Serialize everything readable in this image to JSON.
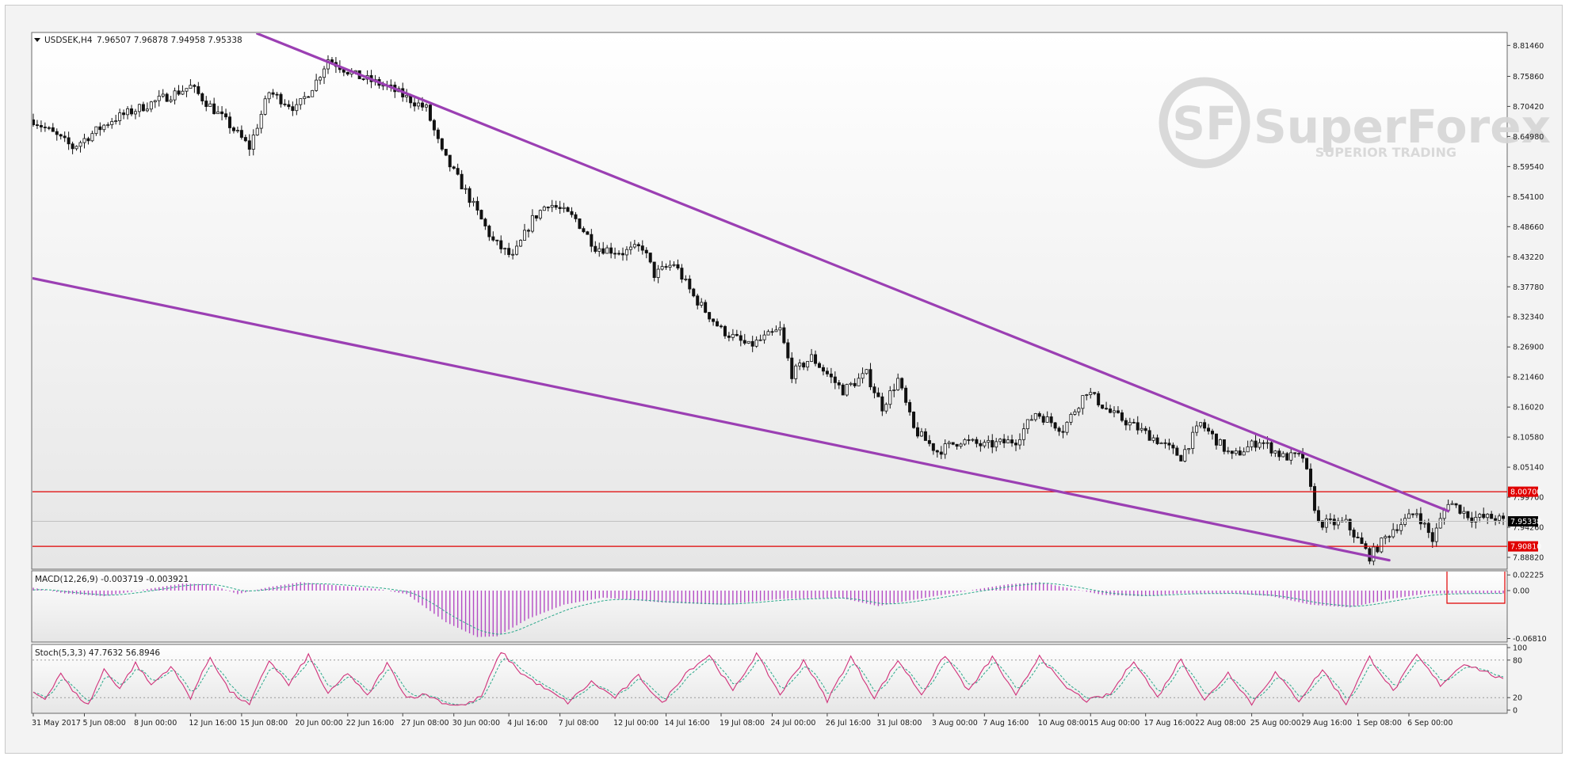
{
  "chart_data": [
    {
      "type": "candlestick",
      "symbol_label": "USDSEK,H4",
      "ohlc_label": "7.96507 7.96878 7.94958 7.95338",
      "price_axis_ticks": [
        "8.81460",
        "8.75860",
        "8.70420",
        "8.64980",
        "8.59540",
        "8.54100",
        "8.48660",
        "8.43220",
        "8.37780",
        "8.32340",
        "8.26900",
        "8.21460",
        "8.16020",
        "8.10580",
        "8.05140",
        "7.99700",
        "7.94260",
        "7.88820"
      ],
      "ylim": [
        7.8682,
        8.8366
      ],
      "levels": [
        {
          "label": "8.00700",
          "value": 8.007,
          "color": "#e00000"
        },
        {
          "label": "7.90810",
          "value": 7.9081,
          "color": "#e00000"
        }
      ],
      "current_price": {
        "label": "7.95338",
        "value": 7.95338
      },
      "trendlines": [
        {
          "name": "upper",
          "color": "#9b3fb3",
          "from": {
            "bar": 57,
            "price": 8.836
          },
          "to": {
            "bar": 360,
            "price": 7.972
          }
        },
        {
          "name": "lower",
          "color": "#9b3fb3",
          "from": {
            "bar": 0,
            "price": 8.393
          },
          "to": {
            "bar": 345,
            "price": 7.883
          }
        }
      ],
      "approx_close_path": [
        {
          "bar": 0,
          "price": 8.68
        },
        {
          "bar": 10,
          "price": 8.63
        },
        {
          "bar": 20,
          "price": 8.68
        },
        {
          "bar": 30,
          "price": 8.71
        },
        {
          "bar": 40,
          "price": 8.74
        },
        {
          "bar": 50,
          "price": 8.67
        },
        {
          "bar": 55,
          "price": 8.63
        },
        {
          "bar": 60,
          "price": 8.73
        },
        {
          "bar": 67,
          "price": 8.7
        },
        {
          "bar": 72,
          "price": 8.75
        },
        {
          "bar": 75,
          "price": 8.79
        },
        {
          "bar": 82,
          "price": 8.76
        },
        {
          "bar": 90,
          "price": 8.74
        },
        {
          "bar": 100,
          "price": 8.7
        },
        {
          "bar": 104,
          "price": 8.62
        },
        {
          "bar": 110,
          "price": 8.55
        },
        {
          "bar": 117,
          "price": 8.46
        },
        {
          "bar": 122,
          "price": 8.43
        },
        {
          "bar": 127,
          "price": 8.5
        },
        {
          "bar": 131,
          "price": 8.53
        },
        {
          "bar": 138,
          "price": 8.5
        },
        {
          "bar": 143,
          "price": 8.45
        },
        {
          "bar": 150,
          "price": 8.44
        },
        {
          "bar": 155,
          "price": 8.45
        },
        {
          "bar": 158,
          "price": 8.4
        },
        {
          "bar": 163,
          "price": 8.42
        },
        {
          "bar": 168,
          "price": 8.36
        },
        {
          "bar": 175,
          "price": 8.3
        },
        {
          "bar": 182,
          "price": 8.27
        },
        {
          "bar": 190,
          "price": 8.3
        },
        {
          "bar": 193,
          "price": 8.22
        },
        {
          "bar": 198,
          "price": 8.25
        },
        {
          "bar": 206,
          "price": 8.19
        },
        {
          "bar": 212,
          "price": 8.22
        },
        {
          "bar": 216,
          "price": 8.16
        },
        {
          "bar": 220,
          "price": 8.21
        },
        {
          "bar": 224,
          "price": 8.12
        },
        {
          "bar": 230,
          "price": 8.08
        },
        {
          "bar": 236,
          "price": 8.1
        },
        {
          "bar": 242,
          "price": 8.09
        },
        {
          "bar": 250,
          "price": 8.1
        },
        {
          "bar": 255,
          "price": 8.15
        },
        {
          "bar": 262,
          "price": 8.12
        },
        {
          "bar": 268,
          "price": 8.19
        },
        {
          "bar": 274,
          "price": 8.15
        },
        {
          "bar": 279,
          "price": 8.13
        },
        {
          "bar": 286,
          "price": 8.1
        },
        {
          "bar": 292,
          "price": 8.07
        },
        {
          "bar": 297,
          "price": 8.13
        },
        {
          "bar": 305,
          "price": 8.07
        },
        {
          "bar": 312,
          "price": 8.1
        },
        {
          "bar": 318,
          "price": 8.07
        },
        {
          "bar": 323,
          "price": 8.07
        },
        {
          "bar": 327,
          "price": 7.95
        },
        {
          "bar": 334,
          "price": 7.95
        },
        {
          "bar": 340,
          "price": 7.89
        },
        {
          "bar": 346,
          "price": 7.94
        },
        {
          "bar": 352,
          "price": 7.97
        },
        {
          "bar": 356,
          "price": 7.92
        },
        {
          "bar": 360,
          "price": 7.99
        },
        {
          "bar": 366,
          "price": 7.96
        },
        {
          "bar": 372,
          "price": 7.96
        },
        {
          "bar": 374,
          "price": 7.953
        }
      ],
      "time_axis_labels": [
        {
          "bar": 0,
          "label": "31 May 2017"
        },
        {
          "bar": 13,
          "label": "5 Jun 08:00"
        },
        {
          "bar": 26,
          "label": "8 Jun 00:00"
        },
        {
          "bar": 40,
          "label": "12 Jun 16:00"
        },
        {
          "bar": 53,
          "label": "15 Jun 08:00"
        },
        {
          "bar": 67,
          "label": "20 Jun 00:00"
        },
        {
          "bar": 80,
          "label": "22 Jun 16:00"
        },
        {
          "bar": 94,
          "label": "27 Jun 08:00"
        },
        {
          "bar": 107,
          "label": "30 Jun 00:00"
        },
        {
          "bar": 121,
          "label": "4 Jul 16:00"
        },
        {
          "bar": 134,
          "label": "7 Jul 08:00"
        },
        {
          "bar": 148,
          "label": "12 Jul 00:00"
        },
        {
          "bar": 161,
          "label": "14 Jul 16:00"
        },
        {
          "bar": 175,
          "label": "19 Jul 08:00"
        },
        {
          "bar": 188,
          "label": "24 Jul 00:00"
        },
        {
          "bar": 202,
          "label": "26 Jul 16:00"
        },
        {
          "bar": 215,
          "label": "31 Jul 08:00"
        },
        {
          "bar": 229,
          "label": "3 Aug 00:00"
        },
        {
          "bar": 242,
          "label": "7 Aug 16:00"
        },
        {
          "bar": 256,
          "label": "10 Aug 08:00"
        },
        {
          "bar": 269,
          "label": "15 Aug 00:00"
        },
        {
          "bar": 283,
          "label": "17 Aug 16:00"
        },
        {
          "bar": 296,
          "label": "22 Aug 08:00"
        },
        {
          "bar": 310,
          "label": "25 Aug 00:00"
        },
        {
          "bar": 323,
          "label": "29 Aug 16:00"
        },
        {
          "bar": 337,
          "label": "1 Sep 08:00"
        },
        {
          "bar": 350,
          "label": "6 Sep 00:00"
        }
      ]
    },
    {
      "type": "histogram",
      "label": "MACD(12,26,9) -0.003719 -0.003921",
      "axis_ticks": [
        {
          "label": "0.02225",
          "value": 0.02225
        },
        {
          "label": "0.00",
          "value": 0.0
        },
        {
          "label": "-0.06810",
          "value": -0.0681
        }
      ],
      "ylim": [
        -0.072,
        0.027
      ],
      "approx_values": [
        {
          "bar": 0,
          "value": 0.004
        },
        {
          "bar": 8,
          "value": -0.004
        },
        {
          "bar": 18,
          "value": -0.008
        },
        {
          "bar": 30,
          "value": 0.003
        },
        {
          "bar": 38,
          "value": 0.01
        },
        {
          "bar": 45,
          "value": 0.009
        },
        {
          "bar": 52,
          "value": -0.005
        },
        {
          "bar": 60,
          "value": 0.005
        },
        {
          "bar": 68,
          "value": 0.012
        },
        {
          "bar": 78,
          "value": 0.007
        },
        {
          "bar": 88,
          "value": 0.002
        },
        {
          "bar": 95,
          "value": -0.005
        },
        {
          "bar": 105,
          "value": -0.045
        },
        {
          "bar": 113,
          "value": -0.066
        },
        {
          "bar": 118,
          "value": -0.065
        },
        {
          "bar": 126,
          "value": -0.04
        },
        {
          "bar": 135,
          "value": -0.02
        },
        {
          "bar": 145,
          "value": -0.01
        },
        {
          "bar": 160,
          "value": -0.017
        },
        {
          "bar": 175,
          "value": -0.02
        },
        {
          "bar": 190,
          "value": -0.012
        },
        {
          "bar": 205,
          "value": -0.01
        },
        {
          "bar": 215,
          "value": -0.022
        },
        {
          "bar": 225,
          "value": -0.012
        },
        {
          "bar": 238,
          "value": 0.0
        },
        {
          "bar": 248,
          "value": 0.009
        },
        {
          "bar": 256,
          "value": 0.012
        },
        {
          "bar": 264,
          "value": 0.003
        },
        {
          "bar": 272,
          "value": -0.006
        },
        {
          "bar": 282,
          "value": -0.008
        },
        {
          "bar": 292,
          "value": -0.004
        },
        {
          "bar": 305,
          "value": -0.004
        },
        {
          "bar": 315,
          "value": -0.008
        },
        {
          "bar": 325,
          "value": -0.02
        },
        {
          "bar": 335,
          "value": -0.024
        },
        {
          "bar": 345,
          "value": -0.012
        },
        {
          "bar": 355,
          "value": -0.004
        },
        {
          "bar": 365,
          "value": -0.004
        },
        {
          "bar": 374,
          "value": -0.004
        }
      ]
    },
    {
      "type": "line",
      "label": "Stoch(5,3,3) 47.7632 56.8946",
      "axis_ticks": [
        {
          "label": "100",
          "value": 100
        },
        {
          "label": "80",
          "value": 80
        },
        {
          "label": "20",
          "value": 20
        },
        {
          "label": "0",
          "value": 0
        }
      ],
      "ylim": [
        0,
        100
      ],
      "approx_values": [
        {
          "bar": 0,
          "value": 28
        },
        {
          "bar": 3,
          "value": 18
        },
        {
          "bar": 7,
          "value": 60
        },
        {
          "bar": 10,
          "value": 30
        },
        {
          "bar": 14,
          "value": 8
        },
        {
          "bar": 18,
          "value": 65
        },
        {
          "bar": 22,
          "value": 35
        },
        {
          "bar": 26,
          "value": 75
        },
        {
          "bar": 30,
          "value": 40
        },
        {
          "bar": 35,
          "value": 70
        },
        {
          "bar": 40,
          "value": 20
        },
        {
          "bar": 45,
          "value": 85
        },
        {
          "bar": 50,
          "value": 30
        },
        {
          "bar": 55,
          "value": 8
        },
        {
          "bar": 60,
          "value": 80
        },
        {
          "bar": 65,
          "value": 40
        },
        {
          "bar": 70,
          "value": 88
        },
        {
          "bar": 75,
          "value": 25
        },
        {
          "bar": 80,
          "value": 60
        },
        {
          "bar": 85,
          "value": 22
        },
        {
          "bar": 90,
          "value": 75
        },
        {
          "bar": 95,
          "value": 20
        },
        {
          "bar": 100,
          "value": 25
        },
        {
          "bar": 105,
          "value": 10
        },
        {
          "bar": 110,
          "value": 8
        },
        {
          "bar": 114,
          "value": 22
        },
        {
          "bar": 119,
          "value": 94
        },
        {
          "bar": 124,
          "value": 60
        },
        {
          "bar": 130,
          "value": 35
        },
        {
          "bar": 136,
          "value": 12
        },
        {
          "bar": 142,
          "value": 45
        },
        {
          "bar": 148,
          "value": 20
        },
        {
          "bar": 154,
          "value": 55
        },
        {
          "bar": 160,
          "value": 10
        },
        {
          "bar": 166,
          "value": 60
        },
        {
          "bar": 172,
          "value": 88
        },
        {
          "bar": 178,
          "value": 30
        },
        {
          "bar": 184,
          "value": 90
        },
        {
          "bar": 190,
          "value": 25
        },
        {
          "bar": 196,
          "value": 80
        },
        {
          "bar": 202,
          "value": 15
        },
        {
          "bar": 208,
          "value": 85
        },
        {
          "bar": 214,
          "value": 20
        },
        {
          "bar": 220,
          "value": 80
        },
        {
          "bar": 226,
          "value": 25
        },
        {
          "bar": 232,
          "value": 88
        },
        {
          "bar": 238,
          "value": 30
        },
        {
          "bar": 244,
          "value": 85
        },
        {
          "bar": 250,
          "value": 22
        },
        {
          "bar": 256,
          "value": 88
        },
        {
          "bar": 262,
          "value": 40
        },
        {
          "bar": 268,
          "value": 15
        },
        {
          "bar": 274,
          "value": 25
        },
        {
          "bar": 280,
          "value": 80
        },
        {
          "bar": 286,
          "value": 20
        },
        {
          "bar": 292,
          "value": 82
        },
        {
          "bar": 298,
          "value": 15
        },
        {
          "bar": 304,
          "value": 60
        },
        {
          "bar": 310,
          "value": 10
        },
        {
          "bar": 316,
          "value": 60
        },
        {
          "bar": 322,
          "value": 15
        },
        {
          "bar": 328,
          "value": 65
        },
        {
          "bar": 334,
          "value": 10
        },
        {
          "bar": 340,
          "value": 85
        },
        {
          "bar": 346,
          "value": 30
        },
        {
          "bar": 352,
          "value": 88
        },
        {
          "bar": 358,
          "value": 40
        },
        {
          "bar": 364,
          "value": 75
        },
        {
          "bar": 370,
          "value": 60
        },
        {
          "bar": 374,
          "value": 48
        }
      ],
      "levels": [
        80,
        20
      ]
    }
  ],
  "watermark": {
    "brand": "SuperForex",
    "tagline": "SUPERIOR TRADING"
  },
  "colors": {
    "candle": "#111111",
    "trendline": "#9b3fb3",
    "level_line": "#e00000",
    "macd_hist": "#b44cc4",
    "signal_line": "#2aa88a",
    "stoch_main": "#d0317a",
    "stoch_signal": "#2aa88a"
  }
}
